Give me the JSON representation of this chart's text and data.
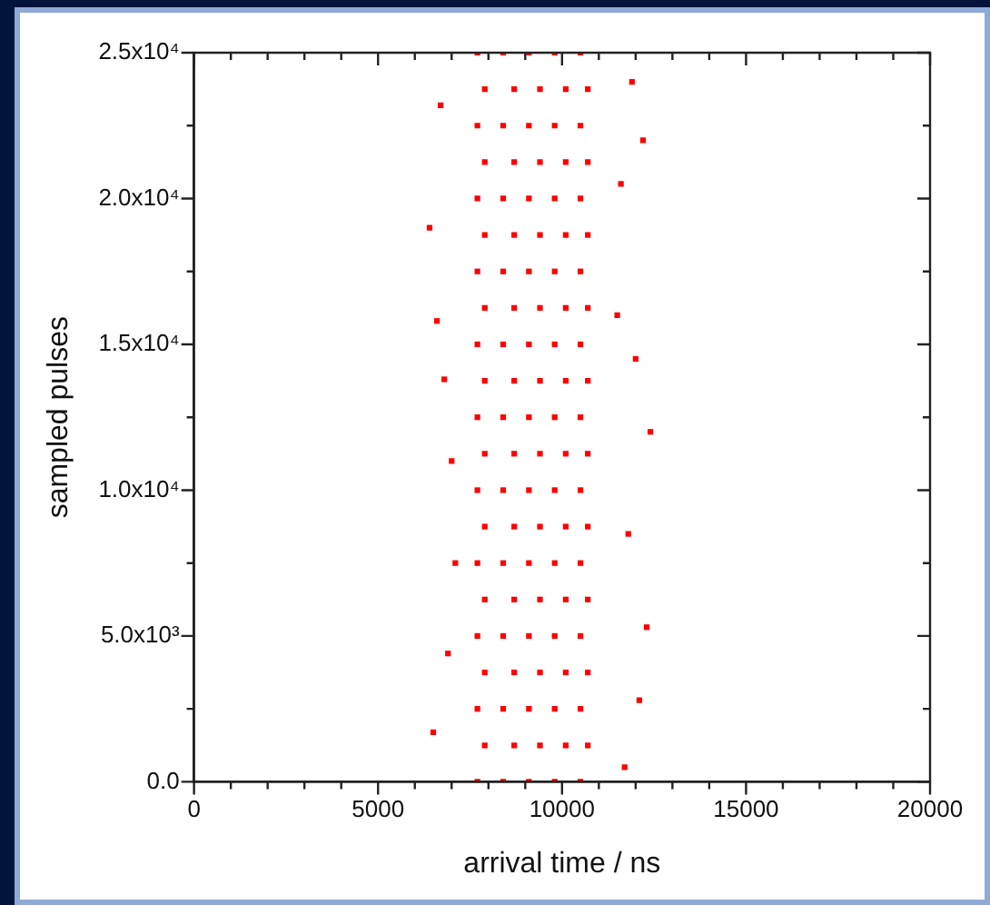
{
  "chart_data": {
    "type": "scatter",
    "xlabel": "arrival time / ns",
    "ylabel": "sampled pulses",
    "color": "#ff0000",
    "marker": "square",
    "grid": false,
    "legend": false,
    "xlim": [
      0,
      20000
    ],
    "ylim": [
      0,
      25000
    ],
    "xticks": [
      0,
      {
        "value": 1000,
        "label": null
      },
      {
        "value": 2000,
        "label": null
      },
      {
        "value": 3000,
        "label": null
      },
      {
        "value": 4000,
        "label": null
      },
      5000,
      {
        "value": 6000,
        "label": null
      },
      {
        "value": 7000,
        "label": null
      },
      {
        "value": 8000,
        "label": null
      },
      {
        "value": 9000,
        "label": null
      },
      10000,
      {
        "value": 11000,
        "label": null
      },
      {
        "value": 12000,
        "label": null
      },
      {
        "value": 13000,
        "label": null
      },
      {
        "value": 14000,
        "label": null
      },
      15000,
      {
        "value": 16000,
        "label": null
      },
      {
        "value": 17000,
        "label": null
      },
      {
        "value": 18000,
        "label": null
      },
      {
        "value": 19000,
        "label": null
      },
      20000
    ],
    "yticks": [
      {
        "value": 0,
        "label": "0.0"
      },
      {
        "value": 2500,
        "label": null
      },
      {
        "value": 5000,
        "label": "5.0x10³"
      },
      {
        "value": 7500,
        "label": null
      },
      {
        "value": 10000,
        "label": "1.0x10⁴"
      },
      {
        "value": 12500,
        "label": null
      },
      {
        "value": 15000,
        "label": "1.5x10⁴"
      },
      {
        "value": 17500,
        "label": null
      },
      {
        "value": 20000,
        "label": "2.0x10⁴"
      },
      {
        "value": 22500,
        "label": null
      },
      {
        "value": 25000,
        "label": "2.5x10⁴"
      }
    ],
    "x": [
      7700,
      8400,
      9100,
      9800,
      10500,
      7900,
      8700,
      9400,
      10100,
      10700,
      7700,
      8400,
      9100,
      9800,
      10500,
      7900,
      8700,
      9400,
      10100,
      10700,
      7700,
      8400,
      9100,
      9800,
      10500,
      7900,
      8700,
      9400,
      10100,
      10700,
      7700,
      8400,
      9100,
      9800,
      10500,
      7900,
      8700,
      9400,
      10100,
      10700,
      7700,
      8400,
      9100,
      9800,
      10500,
      7900,
      8700,
      9400,
      10100,
      10700,
      7700,
      8400,
      9100,
      9800,
      10500,
      7900,
      8700,
      9400,
      10100,
      10700,
      7700,
      8400,
      9100,
      9800,
      10500,
      7900,
      8700,
      9400,
      10100,
      10700,
      7700,
      8400,
      9100,
      9800,
      10500,
      7900,
      8700,
      9400,
      10100,
      10700,
      7700,
      8400,
      9100,
      9800,
      10500,
      7900,
      8700,
      9400,
      10100,
      10700,
      7700,
      8400,
      9100,
      9800,
      10500,
      7900,
      8700,
      9400,
      10100,
      10700,
      7700,
      8400,
      9100,
      9800,
      10500,
      6400,
      6600,
      6500,
      6700,
      12200,
      12400,
      12300,
      11800,
      12100,
      11500,
      7000,
      6900,
      11600,
      11900,
      7100,
      6800,
      11700,
      12000
    ],
    "values": [
      0,
      0,
      0,
      0,
      0,
      1250,
      1250,
      1250,
      1250,
      1250,
      2500,
      2500,
      2500,
      2500,
      2500,
      3750,
      3750,
      3750,
      3750,
      3750,
      5000,
      5000,
      5000,
      5000,
      5000,
      6250,
      6250,
      6250,
      6250,
      6250,
      7500,
      7500,
      7500,
      7500,
      7500,
      8750,
      8750,
      8750,
      8750,
      8750,
      10000,
      10000,
      10000,
      10000,
      10000,
      11250,
      11250,
      11250,
      11250,
      11250,
      12500,
      12500,
      12500,
      12500,
      12500,
      13750,
      13750,
      13750,
      13750,
      13750,
      15000,
      15000,
      15000,
      15000,
      15000,
      16250,
      16250,
      16250,
      16250,
      16250,
      17500,
      17500,
      17500,
      17500,
      17500,
      18750,
      18750,
      18750,
      18750,
      18750,
      20000,
      20000,
      20000,
      20000,
      20000,
      21250,
      21250,
      21250,
      21250,
      21250,
      22500,
      22500,
      22500,
      22500,
      22500,
      23750,
      23750,
      23750,
      23750,
      23750,
      25000,
      25000,
      25000,
      25000,
      25000,
      19000,
      15800,
      1700,
      23200,
      22000,
      12000,
      5300,
      8500,
      2800,
      16000,
      11000,
      4400,
      20500,
      24000,
      7500,
      13800,
      500,
      14500
    ]
  }
}
